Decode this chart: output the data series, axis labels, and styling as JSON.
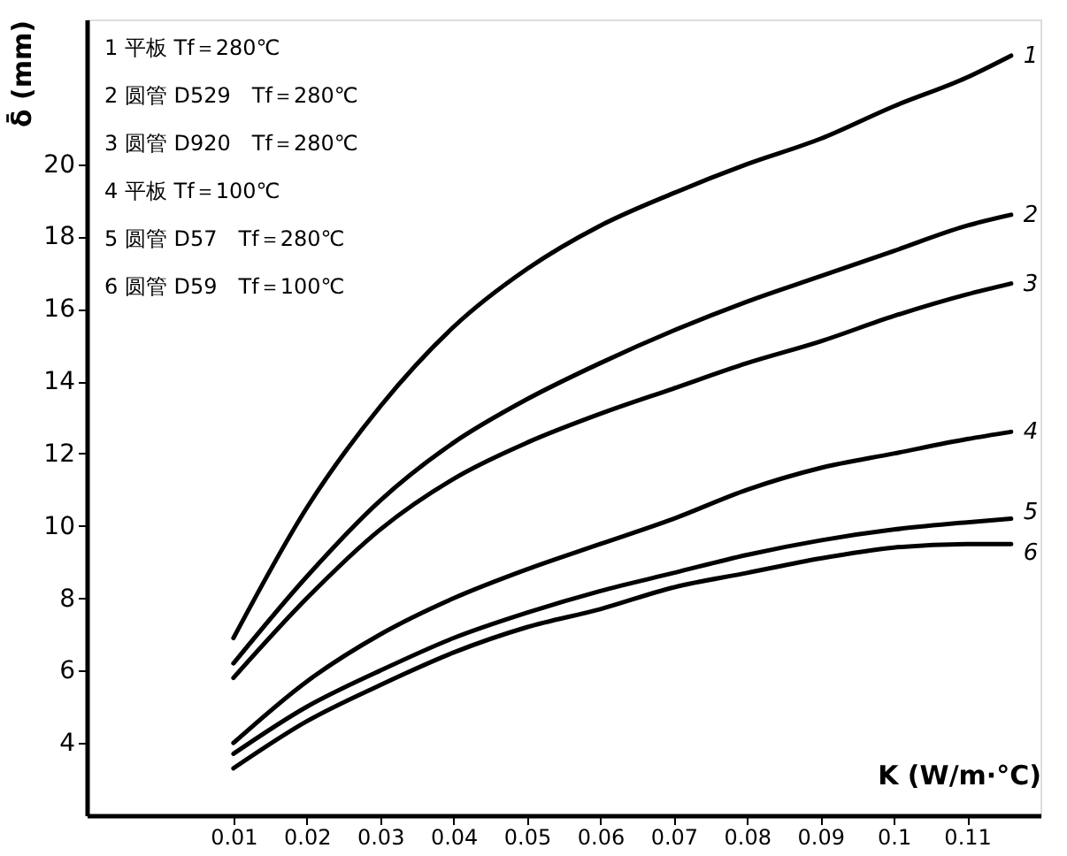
{
  "chart_data": {
    "type": "line",
    "xlabel": "K (W/m·°C)",
    "ylabel": "δ̄ (mm)",
    "xlim": [
      -0.01,
      0.12
    ],
    "ylim": [
      2,
      24
    ],
    "xticks": [
      0.01,
      0.02,
      0.03,
      0.04,
      0.05,
      0.06,
      0.07,
      0.08,
      0.09,
      0.1,
      0.11
    ],
    "yticks": [
      4,
      6,
      8,
      10,
      12,
      14,
      16,
      18,
      20
    ],
    "grid": false,
    "legend": false,
    "marker": "none",
    "line_style": "solid",
    "x": [
      0.01,
      0.02,
      0.03,
      0.04,
      0.05,
      0.06,
      0.07,
      0.08,
      0.09,
      0.1,
      0.11,
      0.116
    ],
    "series": [
      {
        "name": "1",
        "color": "#000000",
        "values": [
          6.9,
          10.5,
          13.3,
          15.5,
          17.1,
          18.3,
          19.2,
          20.0,
          20.7,
          21.6,
          22.4,
          23.0
        ]
      },
      {
        "name": "2",
        "color": "#000000",
        "values": [
          6.2,
          8.6,
          10.7,
          12.3,
          13.5,
          14.5,
          15.4,
          16.2,
          16.9,
          17.6,
          18.3,
          18.6
        ]
      },
      {
        "name": "3",
        "color": "#000000",
        "values": [
          5.8,
          8.0,
          9.9,
          11.3,
          12.3,
          13.1,
          13.8,
          14.5,
          15.1,
          15.8,
          16.4,
          16.7
        ]
      },
      {
        "name": "4",
        "color": "#000000",
        "values": [
          4.0,
          5.7,
          7.0,
          8.0,
          8.8,
          9.5,
          10.2,
          11.0,
          11.6,
          12.0,
          12.4,
          12.6
        ]
      },
      {
        "name": "5",
        "color": "#000000",
        "values": [
          3.7,
          5.0,
          6.0,
          6.9,
          7.6,
          8.2,
          8.7,
          9.2,
          9.6,
          9.9,
          10.1,
          10.2
        ]
      },
      {
        "name": "6",
        "color": "#000000",
        "values": [
          3.3,
          4.6,
          5.6,
          6.5,
          7.2,
          7.7,
          8.3,
          8.7,
          9.1,
          9.4,
          9.5,
          9.5
        ]
      }
    ],
    "annotations": [
      "1 平板 Tf＝280℃",
      "2 圆管 D529　Tf＝280℃",
      "3 圆管 D920　Tf＝280℃",
      "4 平板 Tf＝100℃",
      "5 圆管 D57　Tf＝280℃",
      "6 圆管 D59　Tf＝100℃"
    ]
  }
}
